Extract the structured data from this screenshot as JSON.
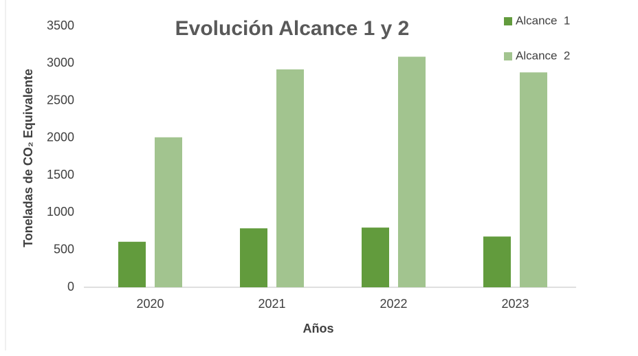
{
  "chart_data": {
    "type": "bar",
    "title": "Evolución Alcance 1 y 2",
    "x_label": "Años",
    "y_label": "Toneladas de CO₂ Equivalente",
    "categories": [
      "2020",
      "2021",
      "2022",
      "2023"
    ],
    "series": [
      {
        "name": "Alcance  1",
        "color": "#629b3d",
        "values": [
          610,
          790,
          800,
          680
        ]
      },
      {
        "name": "Alcance  2",
        "color": "#a2c48f",
        "values": [
          2010,
          2920,
          3090,
          2880
        ]
      }
    ],
    "ylim": [
      0,
      3500
    ],
    "yticks": [
      0,
      500,
      1000,
      1500,
      2000,
      2500,
      3000,
      3500
    ],
    "grid": false,
    "legend": "top-right"
  }
}
